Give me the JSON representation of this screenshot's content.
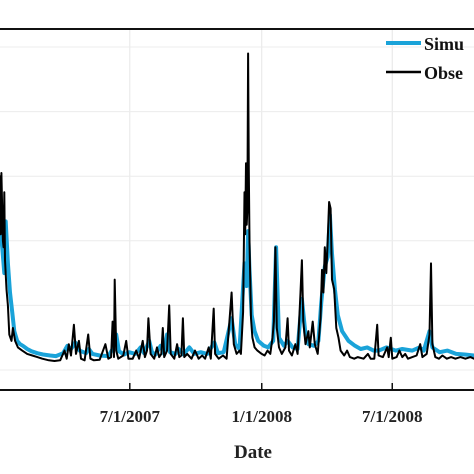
{
  "chart_data": {
    "type": "line",
    "xlabel": "Date",
    "ylabel": "",
    "x_tick_labels": [
      "7/1/2007",
      "1/1/2008",
      "7/1/2008"
    ],
    "x_tick_dates": [
      "2007-07-01",
      "2008-01-01",
      "2008-07-01"
    ],
    "xlim": [
      "2007-01-01",
      "2008-10-23"
    ],
    "ylim": [
      0,
      1
    ],
    "grid": true,
    "legend": {
      "placement": "top-right"
    },
    "series": [
      {
        "name": "Simu",
        "color": "#1aa3d9",
        "points": [
          [
            "2007-01-01",
            0.45
          ],
          [
            "2007-01-04",
            0.38
          ],
          [
            "2007-01-07",
            0.3
          ],
          [
            "2007-01-09",
            0.46
          ],
          [
            "2007-01-12",
            0.33
          ],
          [
            "2007-01-15",
            0.24
          ],
          [
            "2007-01-18",
            0.18
          ],
          [
            "2007-01-21",
            0.12
          ],
          [
            "2007-01-25",
            0.09
          ],
          [
            "2007-01-29",
            0.08
          ],
          [
            "2007-02-02",
            0.075
          ],
          [
            "2007-02-08",
            0.065
          ],
          [
            "2007-02-14",
            0.058
          ],
          [
            "2007-02-22",
            0.052
          ],
          [
            "2007-03-02",
            0.048
          ],
          [
            "2007-03-12",
            0.045
          ],
          [
            "2007-03-20",
            0.043
          ],
          [
            "2007-03-30",
            0.052
          ],
          [
            "2007-04-05",
            0.075
          ],
          [
            "2007-04-10",
            0.065
          ],
          [
            "2007-04-16",
            0.085
          ],
          [
            "2007-04-22",
            0.06
          ],
          [
            "2007-05-01",
            0.052
          ],
          [
            "2007-05-05",
            0.065
          ],
          [
            "2007-05-10",
            0.05
          ],
          [
            "2007-05-20",
            0.045
          ],
          [
            "2007-06-01",
            0.043
          ],
          [
            "2007-06-07",
            0.065
          ],
          [
            "2007-06-12",
            0.11
          ],
          [
            "2007-06-16",
            0.058
          ],
          [
            "2007-06-23",
            0.048
          ],
          [
            "2007-06-30",
            0.055
          ],
          [
            "2007-07-09",
            0.05
          ],
          [
            "2007-07-16",
            0.07
          ],
          [
            "2007-07-21",
            0.052
          ],
          [
            "2007-07-28",
            0.09
          ],
          [
            "2007-08-01",
            0.055
          ],
          [
            "2007-08-06",
            0.048
          ],
          [
            "2007-08-13",
            0.075
          ],
          [
            "2007-08-18",
            0.05
          ],
          [
            "2007-08-22",
            0.11
          ],
          [
            "2007-08-26",
            0.055
          ],
          [
            "2007-09-03",
            0.05
          ],
          [
            "2007-09-07",
            0.065
          ],
          [
            "2007-09-14",
            0.048
          ],
          [
            "2007-09-22",
            0.07
          ],
          [
            "2007-09-29",
            0.05
          ],
          [
            "2007-10-08",
            0.055
          ],
          [
            "2007-10-17",
            0.05
          ],
          [
            "2007-10-27",
            0.085
          ],
          [
            "2007-11-01",
            0.052
          ],
          [
            "2007-11-09",
            0.055
          ],
          [
            "2007-11-20",
            0.16
          ],
          [
            "2007-11-25",
            0.08
          ],
          [
            "2007-12-01",
            0.065
          ],
          [
            "2007-12-05",
            0.22
          ],
          [
            "2007-12-08",
            0.33
          ],
          [
            "2007-12-11",
            0.26
          ],
          [
            "2007-12-13",
            0.43
          ],
          [
            "2007-12-15",
            0.31
          ],
          [
            "2007-12-18",
            0.17
          ],
          [
            "2007-12-22",
            0.12
          ],
          [
            "2007-12-27",
            0.09
          ],
          [
            "2008-01-04",
            0.075
          ],
          [
            "2008-01-10",
            0.07
          ],
          [
            "2008-01-17",
            0.09
          ],
          [
            "2008-01-21",
            0.38
          ],
          [
            "2008-01-25",
            0.1
          ],
          [
            "2008-02-01",
            0.075
          ],
          [
            "2008-02-06",
            0.09
          ],
          [
            "2008-02-13",
            0.07
          ],
          [
            "2008-02-20",
            0.065
          ],
          [
            "2008-02-26",
            0.22
          ],
          [
            "2008-03-02",
            0.11
          ],
          [
            "2008-03-06",
            0.08
          ],
          [
            "2008-03-14",
            0.075
          ],
          [
            "2008-03-20",
            0.09
          ],
          [
            "2008-03-24",
            0.21
          ],
          [
            "2008-03-29",
            0.32
          ],
          [
            "2008-04-02",
            0.35
          ],
          [
            "2008-04-05",
            0.48
          ],
          [
            "2008-04-08",
            0.36
          ],
          [
            "2008-04-12",
            0.25
          ],
          [
            "2008-04-16",
            0.17
          ],
          [
            "2008-04-22",
            0.12
          ],
          [
            "2008-05-01",
            0.09
          ],
          [
            "2008-05-10",
            0.075
          ],
          [
            "2008-05-18",
            0.065
          ],
          [
            "2008-05-27",
            0.07
          ],
          [
            "2008-06-05",
            0.06
          ],
          [
            "2008-06-12",
            0.06
          ],
          [
            "2008-06-23",
            0.07
          ],
          [
            "2008-07-06",
            0.06
          ],
          [
            "2008-07-15",
            0.065
          ],
          [
            "2008-07-29",
            0.06
          ],
          [
            "2008-08-08",
            0.07
          ],
          [
            "2008-08-14",
            0.06
          ],
          [
            "2008-08-22",
            0.12
          ],
          [
            "2008-08-26",
            0.07
          ],
          [
            "2008-09-05",
            0.055
          ],
          [
            "2008-09-16",
            0.06
          ],
          [
            "2008-09-28",
            0.05
          ],
          [
            "2008-10-10",
            0.048
          ],
          [
            "2008-10-23",
            0.045
          ]
        ]
      },
      {
        "name": "Obse",
        "color": "#000000",
        "points": [
          [
            "2007-01-01",
            0.6
          ],
          [
            "2007-01-02",
            0.42
          ],
          [
            "2007-01-03",
            0.61
          ],
          [
            "2007-01-05",
            0.4
          ],
          [
            "2007-01-06",
            0.38
          ],
          [
            "2007-01-07",
            0.55
          ],
          [
            "2007-01-08",
            0.34
          ],
          [
            "2007-01-10",
            0.25
          ],
          [
            "2007-01-12",
            0.2
          ],
          [
            "2007-01-14",
            0.11
          ],
          [
            "2007-01-17",
            0.09
          ],
          [
            "2007-01-19",
            0.13
          ],
          [
            "2007-01-22",
            0.09
          ],
          [
            "2007-01-26",
            0.07
          ],
          [
            "2007-02-01",
            0.06
          ],
          [
            "2007-02-08",
            0.05
          ],
          [
            "2007-02-15",
            0.045
          ],
          [
            "2007-02-22",
            0.04
          ],
          [
            "2007-03-01",
            0.035
          ],
          [
            "2007-03-10",
            0.03
          ],
          [
            "2007-03-18",
            0.028
          ],
          [
            "2007-03-26",
            0.03
          ],
          [
            "2007-04-01",
            0.06
          ],
          [
            "2007-04-04",
            0.035
          ],
          [
            "2007-04-07",
            0.08
          ],
          [
            "2007-04-10",
            0.045
          ],
          [
            "2007-04-14",
            0.14
          ],
          [
            "2007-04-17",
            0.05
          ],
          [
            "2007-04-21",
            0.09
          ],
          [
            "2007-04-24",
            0.035
          ],
          [
            "2007-04-29",
            0.03
          ],
          [
            "2007-05-04",
            0.11
          ],
          [
            "2007-05-07",
            0.035
          ],
          [
            "2007-05-12",
            0.03
          ],
          [
            "2007-05-20",
            0.032
          ],
          [
            "2007-05-28",
            0.08
          ],
          [
            "2007-06-01",
            0.035
          ],
          [
            "2007-06-05",
            0.04
          ],
          [
            "2007-06-07",
            0.15
          ],
          [
            "2007-06-09",
            0.04
          ],
          [
            "2007-06-10",
            0.28
          ],
          [
            "2007-06-12",
            0.06
          ],
          [
            "2007-06-15",
            0.035
          ],
          [
            "2007-06-22",
            0.045
          ],
          [
            "2007-06-26",
            0.09
          ],
          [
            "2007-06-29",
            0.035
          ],
          [
            "2007-07-05",
            0.035
          ],
          [
            "2007-07-10",
            0.06
          ],
          [
            "2007-07-14",
            0.035
          ],
          [
            "2007-07-19",
            0.09
          ],
          [
            "2007-07-22",
            0.04
          ],
          [
            "2007-07-25",
            0.06
          ],
          [
            "2007-07-27",
            0.16
          ],
          [
            "2007-07-30",
            0.05
          ],
          [
            "2007-08-04",
            0.035
          ],
          [
            "2007-08-08",
            0.07
          ],
          [
            "2007-08-11",
            0.04
          ],
          [
            "2007-08-14",
            0.05
          ],
          [
            "2007-08-16",
            0.13
          ],
          [
            "2007-08-18",
            0.04
          ],
          [
            "2007-08-22",
            0.06
          ],
          [
            "2007-08-25",
            0.2
          ],
          [
            "2007-08-27",
            0.05
          ],
          [
            "2007-09-01",
            0.035
          ],
          [
            "2007-09-05",
            0.08
          ],
          [
            "2007-09-08",
            0.04
          ],
          [
            "2007-09-11",
            0.045
          ],
          [
            "2007-09-13",
            0.16
          ],
          [
            "2007-09-15",
            0.04
          ],
          [
            "2007-09-19",
            0.05
          ],
          [
            "2007-09-25",
            0.035
          ],
          [
            "2007-09-30",
            0.06
          ],
          [
            "2007-10-05",
            0.035
          ],
          [
            "2007-10-10",
            0.045
          ],
          [
            "2007-10-14",
            0.035
          ],
          [
            "2007-10-19",
            0.07
          ],
          [
            "2007-10-22",
            0.035
          ],
          [
            "2007-10-26",
            0.19
          ],
          [
            "2007-10-28",
            0.05
          ],
          [
            "2007-11-02",
            0.035
          ],
          [
            "2007-11-08",
            0.045
          ],
          [
            "2007-11-13",
            0.035
          ],
          [
            "2007-11-20",
            0.24
          ],
          [
            "2007-11-23",
            0.08
          ],
          [
            "2007-11-27",
            0.05
          ],
          [
            "2007-12-01",
            0.06
          ],
          [
            "2007-12-03",
            0.05
          ],
          [
            "2007-12-06",
            0.18
          ],
          [
            "2007-12-08",
            0.55
          ],
          [
            "2007-12-09",
            0.42
          ],
          [
            "2007-12-10",
            0.64
          ],
          [
            "2007-12-11",
            0.45
          ],
          [
            "2007-12-12",
            0.5
          ],
          [
            "2007-12-13",
            0.98
          ],
          [
            "2007-12-14",
            0.62
          ],
          [
            "2007-12-15",
            0.4
          ],
          [
            "2007-12-17",
            0.16
          ],
          [
            "2007-12-19",
            0.1
          ],
          [
            "2007-12-22",
            0.07
          ],
          [
            "2007-12-26",
            0.06
          ],
          [
            "2008-01-01",
            0.05
          ],
          [
            "2008-01-05",
            0.045
          ],
          [
            "2008-01-09",
            0.06
          ],
          [
            "2008-01-13",
            0.05
          ],
          [
            "2008-01-16",
            0.1
          ],
          [
            "2008-01-18",
            0.15
          ],
          [
            "2008-01-20",
            0.38
          ],
          [
            "2008-01-22",
            0.13
          ],
          [
            "2008-01-25",
            0.07
          ],
          [
            "2008-01-29",
            0.05
          ],
          [
            "2008-02-03",
            0.07
          ],
          [
            "2008-02-06",
            0.16
          ],
          [
            "2008-02-08",
            0.06
          ],
          [
            "2008-02-12",
            0.045
          ],
          [
            "2008-02-17",
            0.08
          ],
          [
            "2008-02-20",
            0.05
          ],
          [
            "2008-02-24",
            0.24
          ],
          [
            "2008-02-26",
            0.34
          ],
          [
            "2008-02-28",
            0.15
          ],
          [
            "2008-03-02",
            0.08
          ],
          [
            "2008-03-06",
            0.12
          ],
          [
            "2008-03-08",
            0.07
          ],
          [
            "2008-03-12",
            0.15
          ],
          [
            "2008-03-15",
            0.08
          ],
          [
            "2008-03-19",
            0.05
          ],
          [
            "2008-03-23",
            0.16
          ],
          [
            "2008-03-25",
            0.31
          ],
          [
            "2008-03-27",
            0.24
          ],
          [
            "2008-03-29",
            0.38
          ],
          [
            "2008-03-31",
            0.3
          ],
          [
            "2008-04-02",
            0.4
          ],
          [
            "2008-04-04",
            0.52
          ],
          [
            "2008-04-06",
            0.5
          ],
          [
            "2008-04-08",
            0.28
          ],
          [
            "2008-04-11",
            0.25
          ],
          [
            "2008-04-14",
            0.13
          ],
          [
            "2008-04-17",
            0.1
          ],
          [
            "2008-04-20",
            0.06
          ],
          [
            "2008-04-25",
            0.045
          ],
          [
            "2008-04-29",
            0.06
          ],
          [
            "2008-05-03",
            0.04
          ],
          [
            "2008-05-09",
            0.035
          ],
          [
            "2008-05-14",
            0.04
          ],
          [
            "2008-05-22",
            0.035
          ],
          [
            "2008-05-28",
            0.05
          ],
          [
            "2008-06-01",
            0.035
          ],
          [
            "2008-06-06",
            0.035
          ],
          [
            "2008-06-10",
            0.14
          ],
          [
            "2008-06-12",
            0.045
          ],
          [
            "2008-06-18",
            0.04
          ],
          [
            "2008-06-24",
            0.07
          ],
          [
            "2008-06-26",
            0.04
          ],
          [
            "2008-06-29",
            0.1
          ],
          [
            "2008-07-01",
            0.035
          ],
          [
            "2008-07-07",
            0.04
          ],
          [
            "2008-07-11",
            0.06
          ],
          [
            "2008-07-15",
            0.04
          ],
          [
            "2008-07-19",
            0.05
          ],
          [
            "2008-07-23",
            0.035
          ],
          [
            "2008-07-29",
            0.04
          ],
          [
            "2008-08-04",
            0.045
          ],
          [
            "2008-08-09",
            0.08
          ],
          [
            "2008-08-12",
            0.04
          ],
          [
            "2008-08-18",
            0.05
          ],
          [
            "2008-08-22",
            0.11
          ],
          [
            "2008-08-24",
            0.33
          ],
          [
            "2008-08-26",
            0.08
          ],
          [
            "2008-08-30",
            0.04
          ],
          [
            "2008-09-04",
            0.035
          ],
          [
            "2008-09-09",
            0.045
          ],
          [
            "2008-09-15",
            0.035
          ],
          [
            "2008-09-21",
            0.04
          ],
          [
            "2008-09-27",
            0.035
          ],
          [
            "2008-10-04",
            0.04
          ],
          [
            "2008-10-11",
            0.035
          ],
          [
            "2008-10-18",
            0.04
          ],
          [
            "2008-10-23",
            0.035
          ]
        ]
      }
    ]
  }
}
